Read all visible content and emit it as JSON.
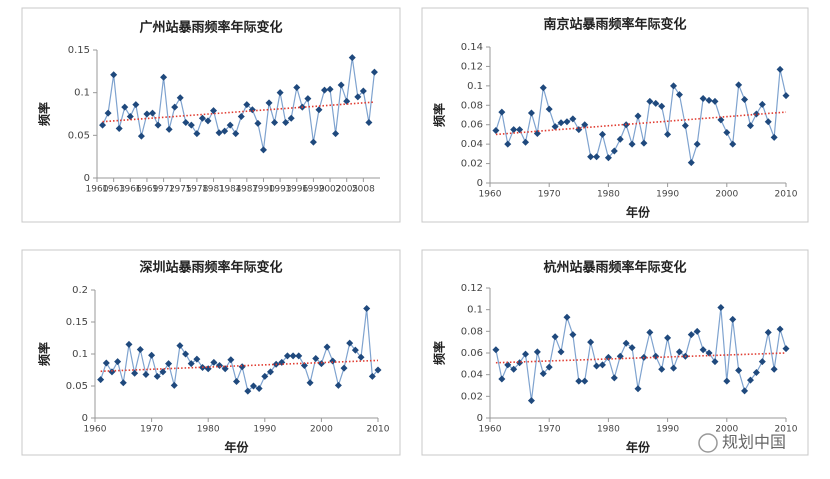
{
  "chart_data": [
    {
      "type": "line",
      "title": "广州站暴雨频率年际变化",
      "y_label": "频率",
      "x": [
        1961,
        1962,
        1963,
        1964,
        1965,
        1966,
        1967,
        1968,
        1969,
        1970,
        1971,
        1972,
        1973,
        1974,
        1975,
        1976,
        1977,
        1978,
        1979,
        1980,
        1981,
        1982,
        1983,
        1984,
        1985,
        1986,
        1987,
        1988,
        1989,
        1990,
        1991,
        1992,
        1993,
        1994,
        1995,
        1996,
        1997,
        1998,
        1999,
        2000,
        2001,
        2002,
        2003,
        2004,
        2005,
        2006,
        2007,
        2008,
        2009,
        2010
      ],
      "series": [
        {
          "color": "#7fa3cf",
          "marker_color": "#1f497d",
          "values": [
            0.062,
            0.076,
            0.121,
            0.058,
            0.083,
            0.072,
            0.086,
            0.049,
            0.075,
            0.076,
            0.062,
            0.118,
            0.057,
            0.083,
            0.094,
            0.065,
            0.062,
            0.052,
            0.07,
            0.067,
            0.079,
            0.053,
            0.055,
            0.062,
            0.052,
            0.072,
            0.086,
            0.08,
            0.064,
            0.033,
            0.088,
            0.065,
            0.1,
            0.065,
            0.07,
            0.106,
            0.083,
            0.093,
            0.042,
            0.08,
            0.103,
            0.104,
            0.052,
            0.109,
            0.09,
            0.141,
            0.095,
            0.102,
            0.065,
            0.124
          ]
        }
      ],
      "trend": {
        "x": [
          1961,
          2010
        ],
        "values": [
          0.066,
          0.089
        ],
        "color": "#e03c31"
      },
      "xlim": [
        1960,
        2011
      ],
      "xticks": [
        1960,
        1963,
        1966,
        1969,
        1972,
        1975,
        1978,
        1981,
        1984,
        1987,
        1990,
        1993,
        1996,
        1999,
        2002,
        2005,
        2008
      ],
      "ylim": [
        0,
        0.15
      ],
      "yticks": [
        0,
        0.05,
        0.1,
        0.15
      ]
    },
    {
      "type": "line",
      "title": "南京站暴雨频率年际变化",
      "y_label": "频率",
      "x_label": "年份",
      "x": [
        1961,
        1962,
        1963,
        1964,
        1965,
        1966,
        1967,
        1968,
        1969,
        1970,
        1971,
        1972,
        1973,
        1974,
        1975,
        1976,
        1977,
        1978,
        1979,
        1980,
        1981,
        1982,
        1983,
        1984,
        1985,
        1986,
        1987,
        1988,
        1989,
        1990,
        1991,
        1992,
        1993,
        1994,
        1995,
        1996,
        1997,
        1998,
        1999,
        2000,
        2001,
        2002,
        2003,
        2004,
        2005,
        2006,
        2007,
        2008,
        2009,
        2010
      ],
      "series": [
        {
          "color": "#7fa3cf",
          "marker_color": "#1f497d",
          "values": [
            0.054,
            0.073,
            0.04,
            0.055,
            0.055,
            0.042,
            0.072,
            0.051,
            0.098,
            0.076,
            0.058,
            0.062,
            0.063,
            0.066,
            0.055,
            0.06,
            0.027,
            0.027,
            0.05,
            0.026,
            0.033,
            0.045,
            0.06,
            0.04,
            0.069,
            0.041,
            0.084,
            0.082,
            0.079,
            0.05,
            0.1,
            0.091,
            0.059,
            0.021,
            0.04,
            0.087,
            0.085,
            0.084,
            0.065,
            0.052,
            0.04,
            0.101,
            0.086,
            0.059,
            0.071,
            0.081,
            0.063,
            0.047,
            0.117,
            0.09
          ]
        }
      ],
      "trend": {
        "x": [
          1961,
          2010
        ],
        "values": [
          0.05,
          0.073
        ],
        "color": "#e03c31"
      },
      "xlim": [
        1960,
        2010
      ],
      "xticks": [
        1960,
        1970,
        1980,
        1990,
        2000,
        2010
      ],
      "ylim": [
        0,
        0.14
      ],
      "yticks": [
        0,
        0.02,
        0.04,
        0.06,
        0.08,
        0.1,
        0.12,
        0.14
      ]
    },
    {
      "type": "line",
      "title": "深圳站暴雨频率年际变化",
      "y_label": "频率",
      "x_label": "年份",
      "x": [
        1961,
        1962,
        1963,
        1964,
        1965,
        1966,
        1967,
        1968,
        1969,
        1970,
        1971,
        1972,
        1973,
        1974,
        1975,
        1976,
        1977,
        1978,
        1979,
        1980,
        1981,
        1982,
        1983,
        1984,
        1985,
        1986,
        1987,
        1988,
        1989,
        1990,
        1991,
        1992,
        1993,
        1994,
        1995,
        1996,
        1997,
        1998,
        1999,
        2000,
        2001,
        2002,
        2003,
        2004,
        2005,
        2006,
        2007,
        2008,
        2009,
        2010
      ],
      "series": [
        {
          "color": "#7fa3cf",
          "marker_color": "#1f497d",
          "values": [
            0.06,
            0.086,
            0.072,
            0.088,
            0.055,
            0.115,
            0.07,
            0.107,
            0.068,
            0.098,
            0.065,
            0.072,
            0.085,
            0.051,
            0.113,
            0.1,
            0.085,
            0.092,
            0.079,
            0.077,
            0.087,
            0.082,
            0.077,
            0.091,
            0.057,
            0.08,
            0.042,
            0.05,
            0.046,
            0.065,
            0.072,
            0.084,
            0.087,
            0.097,
            0.097,
            0.097,
            0.082,
            0.055,
            0.093,
            0.085,
            0.111,
            0.089,
            0.051,
            0.078,
            0.117,
            0.106,
            0.095,
            0.171,
            0.065,
            0.075
          ]
        }
      ],
      "trend": {
        "x": [
          1961,
          2010
        ],
        "values": [
          0.073,
          0.09
        ],
        "color": "#e03c31"
      },
      "xlim": [
        1960,
        2010
      ],
      "xticks": [
        1960,
        1970,
        1980,
        1990,
        2000,
        2010
      ],
      "ylim": [
        0,
        0.2
      ],
      "yticks": [
        0,
        0.05,
        0.1,
        0.15,
        0.2
      ]
    },
    {
      "type": "line",
      "title": "杭州站暴雨频率年际变化",
      "y_label": "频率",
      "x_label": "年份",
      "x": [
        1961,
        1962,
        1963,
        1964,
        1965,
        1966,
        1967,
        1968,
        1969,
        1970,
        1971,
        1972,
        1973,
        1974,
        1975,
        1976,
        1977,
        1978,
        1979,
        1980,
        1981,
        1982,
        1983,
        1984,
        1985,
        1986,
        1987,
        1988,
        1989,
        1990,
        1991,
        1992,
        1993,
        1994,
        1995,
        1996,
        1997,
        1998,
        1999,
        2000,
        2001,
        2002,
        2003,
        2004,
        2005,
        2006,
        2007,
        2008,
        2009,
        2010
      ],
      "series": [
        {
          "color": "#7fa3cf",
          "marker_color": "#1f497d",
          "values": [
            0.063,
            0.036,
            0.049,
            0.045,
            0.051,
            0.059,
            0.016,
            0.061,
            0.041,
            0.047,
            0.075,
            0.061,
            0.093,
            0.077,
            0.034,
            0.034,
            0.07,
            0.048,
            0.049,
            0.056,
            0.037,
            0.057,
            0.069,
            0.065,
            0.027,
            0.056,
            0.079,
            0.057,
            0.045,
            0.074,
            0.046,
            0.061,
            0.057,
            0.077,
            0.08,
            0.063,
            0.06,
            0.052,
            0.102,
            0.034,
            0.091,
            0.044,
            0.025,
            0.035,
            0.042,
            0.052,
            0.079,
            0.045,
            0.082,
            0.064
          ]
        }
      ],
      "trend": {
        "x": [
          1961,
          2010
        ],
        "values": [
          0.051,
          0.06
        ],
        "color": "#e03c31"
      },
      "xlim": [
        1960,
        2010
      ],
      "xticks": [
        1960,
        1970,
        1980,
        1990,
        2000,
        2010
      ],
      "ylim": [
        0,
        0.12
      ],
      "yticks": [
        0,
        0.02,
        0.04,
        0.06,
        0.08,
        0.1,
        0.12
      ]
    }
  ],
  "watermark": "规划中国"
}
